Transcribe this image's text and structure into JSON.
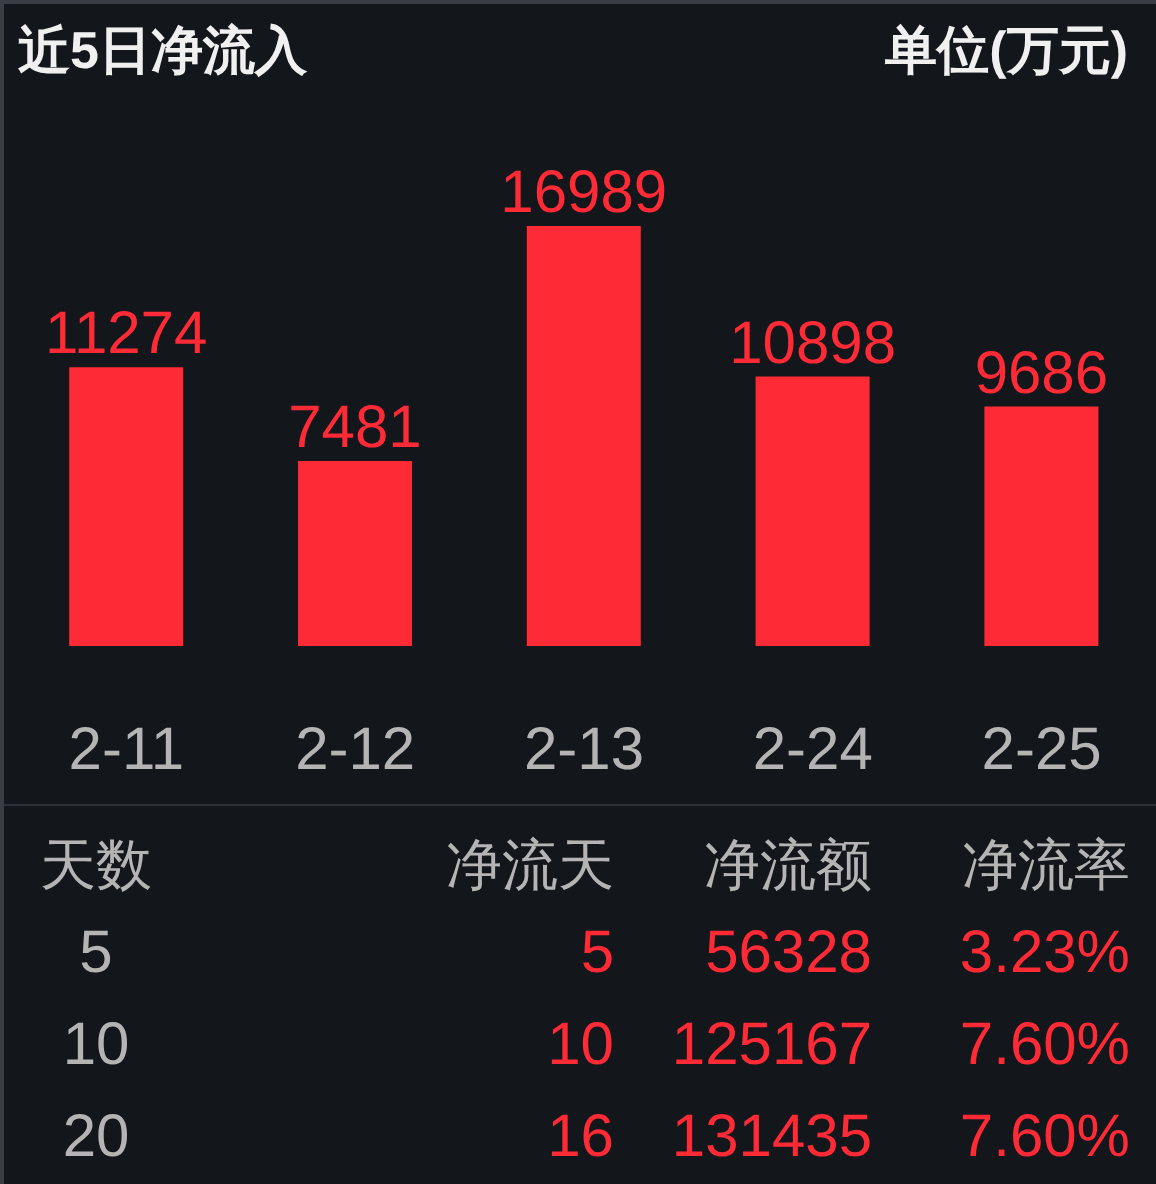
{
  "chart_data": [
    {
      "type": "bar",
      "title": "近5日净流入",
      "subtitle": "单位(万元)",
      "categories": [
        "2-11",
        "2-12",
        "2-13",
        "2-24",
        "2-25"
      ],
      "values": [
        11274,
        7481,
        16989,
        10898,
        9686
      ],
      "color": "#fe2a36",
      "data_labels": true
    },
    {
      "type": "other",
      "xlabel": "天数",
      "categories": [
        "5",
        "10",
        "20"
      ],
      "series": [
        {
          "name": "净流天",
          "values": [
            5,
            10,
            16
          ]
        },
        {
          "name": "净流额",
          "values": [
            56328,
            125167,
            131435
          ]
        },
        {
          "name": "净流率",
          "values": [
            3.23,
            7.6,
            7.6
          ],
          "value_labels": [
            "3.23%",
            "7.60%",
            "7.60%"
          ]
        }
      ],
      "data_labels": true
    }
  ]
}
